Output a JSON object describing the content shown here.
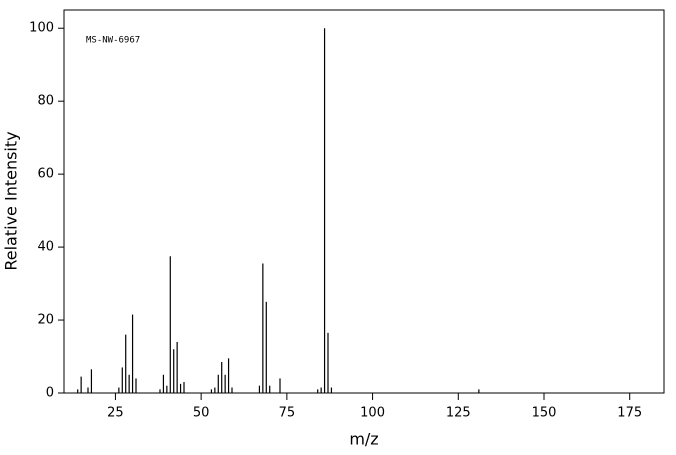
{
  "chart_data": {
    "type": "bar",
    "annotation": "MS-NW-6967",
    "x_label": "m/z",
    "y_label": "Relative Intensity",
    "x": [
      14,
      15,
      17,
      18,
      26,
      27,
      28,
      29,
      30,
      31,
      38,
      39,
      40,
      41,
      42,
      43,
      44,
      45,
      53,
      54,
      55,
      56,
      57,
      58,
      59,
      67,
      68,
      69,
      70,
      73,
      84,
      85,
      86,
      87,
      88,
      131
    ],
    "values": [
      1,
      4.5,
      1.5,
      6.5,
      1.5,
      7,
      16,
      5,
      21.5,
      4,
      1,
      5,
      2,
      37.5,
      12,
      14,
      2.5,
      3,
      1,
      1.5,
      5,
      8.5,
      5,
      9.5,
      1.5,
      2,
      35.5,
      25,
      2,
      4,
      1,
      1.5,
      100,
      16.5,
      1.5,
      1
    ],
    "color": "#000000",
    "xlim": [
      10,
      185
    ],
    "xticks": [
      25,
      50,
      75,
      100,
      125,
      150,
      175
    ],
    "ylim": [
      0,
      105
    ],
    "yticks": [
      0,
      20,
      40,
      60,
      80,
      100
    ]
  }
}
